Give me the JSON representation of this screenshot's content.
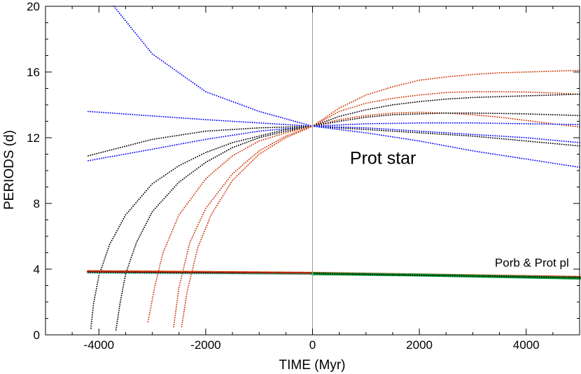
{
  "chart_data": {
    "type": "scatter",
    "title": "",
    "xlabel": "TIME (Myr)",
    "ylabel": "PERIODS (d)",
    "xlim": [
      -5000,
      5000
    ],
    "ylim": [
      0,
      20
    ],
    "xticks": [
      -4000,
      -2000,
      0,
      2000,
      4000
    ],
    "yticks": [
      0,
      4,
      8,
      12,
      16,
      20
    ],
    "grid": false,
    "legend": "none",
    "reference_line": {
      "x": 0,
      "color": "#999999"
    },
    "annotations": [
      {
        "text": "Prot star",
        "x": 700,
        "y": 10.4,
        "size": "large"
      },
      {
        "text": "Porb & Prot pl",
        "x": 4800,
        "y": 4.15,
        "size": "small",
        "anchor": "end"
      }
    ],
    "series": [
      {
        "color": "#0000ff",
        "x": [
          -3720,
          -3000,
          -2000,
          -1000,
          0
        ],
        "y": [
          20.0,
          17.1,
          14.8,
          13.6,
          12.7
        ]
      },
      {
        "color": "#0000ff",
        "x": [
          -4200,
          -2000,
          0
        ],
        "y": [
          13.6,
          13.1,
          12.7
        ]
      },
      {
        "color": "#0000ff",
        "x": [
          -4200,
          -3000,
          -2000,
          -1000,
          0
        ],
        "y": [
          10.6,
          11.3,
          11.9,
          12.4,
          12.7
        ]
      },
      {
        "color": "#000000",
        "x": [
          -4200,
          -3000,
          -2000,
          -1000,
          0
        ],
        "y": [
          10.9,
          11.9,
          12.4,
          12.6,
          12.7
        ]
      },
      {
        "color": "#000000",
        "x": [
          -4150,
          -4100,
          -4000,
          -3800,
          -3500,
          -3000,
          -2500,
          -2000,
          -1500,
          -1000,
          -500,
          0
        ],
        "y": [
          0.4,
          1.9,
          3.6,
          5.5,
          7.3,
          9.2,
          10.3,
          11.1,
          11.7,
          12.1,
          12.5,
          12.7
        ]
      },
      {
        "color": "#000000",
        "x": [
          -3680,
          -3600,
          -3500,
          -3300,
          -3000,
          -2500,
          -2000,
          -1500,
          -1000,
          -500,
          0
        ],
        "y": [
          0.3,
          2.0,
          3.7,
          5.6,
          7.5,
          9.3,
          10.5,
          11.4,
          12.0,
          12.4,
          12.7
        ]
      },
      {
        "color": "#cc3300",
        "x": [
          -3080,
          -2950,
          -2800,
          -2500,
          -2000,
          -1500,
          -1000,
          -500,
          0
        ],
        "y": [
          0.8,
          3.0,
          5.0,
          7.3,
          9.5,
          10.9,
          11.8,
          12.3,
          12.7
        ]
      },
      {
        "color": "#cc3300",
        "x": [
          -2600,
          -2500,
          -2300,
          -2000,
          -1500,
          -1000,
          -500,
          0
        ],
        "y": [
          0.5,
          2.9,
          5.6,
          7.7,
          9.8,
          11.2,
          12.1,
          12.7
        ]
      },
      {
        "color": "#cc3300",
        "x": [
          -2450,
          -2350,
          -2150,
          -1900,
          -1500,
          -1000,
          -500,
          0
        ],
        "y": [
          0.5,
          2.6,
          5.3,
          7.3,
          9.4,
          11.0,
          12.0,
          12.7
        ]
      },
      {
        "color": "#cc3300",
        "x": [
          0,
          500,
          1000,
          1500,
          2000,
          2500,
          3000,
          3500,
          4000,
          4500,
          5000
        ],
        "y": [
          12.7,
          13.8,
          14.6,
          15.1,
          15.5,
          15.7,
          15.85,
          15.95,
          16.0,
          16.05,
          16.1
        ]
      },
      {
        "color": "#cc3300",
        "x": [
          0,
          500,
          1000,
          1500,
          2000,
          2500,
          3000,
          3500,
          4000,
          4500,
          5000
        ],
        "y": [
          12.7,
          13.6,
          14.1,
          14.4,
          14.6,
          14.75,
          14.8,
          14.8,
          14.78,
          14.72,
          14.65
        ]
      },
      {
        "color": "#cc3300",
        "x": [
          0,
          500,
          1000,
          1500,
          2000,
          2500,
          3000,
          3500,
          4000,
          4500,
          5000
        ],
        "y": [
          12.7,
          13.1,
          13.35,
          13.5,
          13.55,
          13.5,
          13.4,
          13.25,
          13.05,
          12.85,
          12.65
        ]
      },
      {
        "color": "#000000",
        "x": [
          0,
          500,
          1000,
          1500,
          2000,
          2500,
          3000,
          3500,
          4000,
          4500,
          5000
        ],
        "y": [
          12.7,
          13.3,
          13.7,
          14.0,
          14.2,
          14.35,
          14.45,
          14.5,
          14.55,
          14.6,
          14.65
        ]
      },
      {
        "color": "#000000",
        "x": [
          0,
          500,
          1000,
          1500,
          2000,
          2500,
          3000,
          3500,
          4000,
          4500,
          5000
        ],
        "y": [
          12.7,
          13.0,
          13.25,
          13.4,
          13.45,
          13.5,
          13.5,
          13.48,
          13.45,
          13.4,
          13.35
        ]
      },
      {
        "color": "#000000",
        "x": [
          0,
          1000,
          2000,
          3000,
          4000,
          5000
        ],
        "y": [
          12.7,
          12.5,
          12.3,
          12.1,
          11.8,
          11.5
        ]
      },
      {
        "color": "#0000ff",
        "x": [
          0,
          1000,
          2000,
          3000,
          4000,
          5000
        ],
        "y": [
          12.7,
          12.85,
          12.9,
          12.9,
          12.85,
          12.8
        ]
      },
      {
        "color": "#0000ff",
        "x": [
          0,
          1000,
          2000,
          3000,
          4000,
          5000
        ],
        "y": [
          12.7,
          12.6,
          12.4,
          12.2,
          12.0,
          11.7
        ]
      },
      {
        "color": "#0000ff",
        "x": [
          0,
          1000,
          2000,
          3000,
          4000,
          5000
        ],
        "y": [
          12.7,
          12.3,
          11.8,
          11.2,
          10.7,
          10.2
        ]
      },
      {
        "color": "#cc3300",
        "x": [
          -4200,
          -2000,
          0,
          2000,
          5000
        ],
        "y": [
          3.85,
          3.8,
          3.75,
          3.65,
          3.5
        ],
        "thick": true
      },
      {
        "color": "#009933",
        "x": [
          0,
          2000,
          5000
        ],
        "y": [
          3.72,
          3.64,
          3.45
        ],
        "thick": true
      },
      {
        "color": "#000000",
        "x": [
          -4200,
          -2000,
          0,
          2000,
          5000
        ],
        "y": [
          3.82,
          3.78,
          3.73,
          3.63,
          3.48
        ]
      },
      {
        "color": "#00cccc",
        "x": [
          -4200,
          -2000,
          0
        ],
        "y": [
          3.75,
          3.72,
          3.7
        ]
      }
    ]
  }
}
